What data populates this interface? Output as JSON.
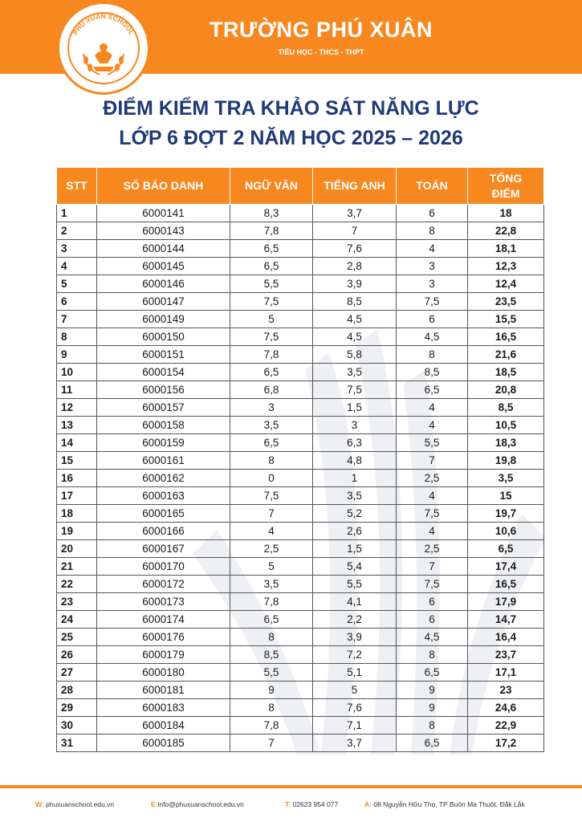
{
  "header": {
    "logo_text": "PHU XUAN SCHOOL",
    "school_name": "TRƯỜNG PHÚ XUÂN",
    "levels": "TIỂU HỌC - THCS - THPT"
  },
  "title": {
    "line1": "ĐIỂM KIỂM TRA KHẢO SÁT NĂNG LỰC",
    "line2": "LỚP 6 ĐỢT 2 NĂM HỌC 2025 – 2026"
  },
  "table": {
    "headers": [
      "STT",
      "SỐ BÁO DANH",
      "NGỮ VĂN",
      "TIẾNG ANH",
      "TOÁN",
      "TỔNG",
      "ĐIỂM"
    ],
    "rows": [
      [
        "1",
        "6000141",
        "8,3",
        "3,7",
        "6",
        "18"
      ],
      [
        "2",
        "6000143",
        "7,8",
        "7",
        "8",
        "22,8"
      ],
      [
        "3",
        "6000144",
        "6,5",
        "7,6",
        "4",
        "18,1"
      ],
      [
        "4",
        "6000145",
        "6,5",
        "2,8",
        "3",
        "12,3"
      ],
      [
        "5",
        "6000146",
        "5,5",
        "3,9",
        "3",
        "12,4"
      ],
      [
        "6",
        "6000147",
        "7,5",
        "8,5",
        "7,5",
        "23,5"
      ],
      [
        "7",
        "6000149",
        "5",
        "4,5",
        "6",
        "15,5"
      ],
      [
        "8",
        "6000150",
        "7,5",
        "4,5",
        "4,5",
        "16,5"
      ],
      [
        "9",
        "6000151",
        "7,8",
        "5,8",
        "8",
        "21,6"
      ],
      [
        "10",
        "6000154",
        "6,5",
        "3,5",
        "8,5",
        "18,5"
      ],
      [
        "11",
        "6000156",
        "6,8",
        "7,5",
        "6,5",
        "20,8"
      ],
      [
        "12",
        "6000157",
        "3",
        "1,5",
        "4",
        "8,5"
      ],
      [
        "13",
        "6000158",
        "3,5",
        "3",
        "4",
        "10,5"
      ],
      [
        "14",
        "6000159",
        "6,5",
        "6,3",
        "5,5",
        "18,3"
      ],
      [
        "15",
        "6000161",
        "8",
        "4,8",
        "7",
        "19,8"
      ],
      [
        "16",
        "6000162",
        "0",
        "1",
        "2,5",
        "3,5"
      ],
      [
        "17",
        "6000163",
        "7,5",
        "3,5",
        "4",
        "15"
      ],
      [
        "18",
        "6000165",
        "7",
        "5,2",
        "7,5",
        "19,7"
      ],
      [
        "19",
        "6000166",
        "4",
        "2,6",
        "4",
        "10,6"
      ],
      [
        "20",
        "6000167",
        "2,5",
        "1,5",
        "2,5",
        "6,5"
      ],
      [
        "21",
        "6000170",
        "5",
        "5,4",
        "7",
        "17,4"
      ],
      [
        "22",
        "6000172",
        "3,5",
        "5,5",
        "7,5",
        "16,5"
      ],
      [
        "23",
        "6000173",
        "7,8",
        "4,1",
        "6",
        "17,9"
      ],
      [
        "24",
        "6000174",
        "6,5",
        "2,2",
        "6",
        "14,7"
      ],
      [
        "25",
        "6000176",
        "8",
        "3,9",
        "4,5",
        "16,4"
      ],
      [
        "26",
        "6000179",
        "8,5",
        "7,2",
        "8",
        "23,7"
      ],
      [
        "27",
        "6000180",
        "5,5",
        "5,1",
        "6,5",
        "17,1"
      ],
      [
        "28",
        "6000181",
        "9",
        "5",
        "9",
        "23"
      ],
      [
        "29",
        "6000183",
        "8",
        "7,6",
        "9",
        "24,6"
      ],
      [
        "30",
        "6000184",
        "7,8",
        "7,1",
        "8",
        "22,9"
      ],
      [
        "31",
        "6000185",
        "7",
        "3,7",
        "6,5",
        "17,2"
      ]
    ]
  },
  "footer": {
    "web_label": "W:",
    "web": "phuxuanschool.edu.vn",
    "email_label": "E:",
    "email": "info@phuxuanschool.edu.vn",
    "tel_label": "T:",
    "tel": "02623 954 077",
    "address_label": "A:",
    "address": "08 Nguyễn Hữu Thọ, TP Buôn Ma Thuột, Đắk Lắk"
  },
  "colors": {
    "accent": "#f7881f",
    "title": "#1f3a78"
  }
}
